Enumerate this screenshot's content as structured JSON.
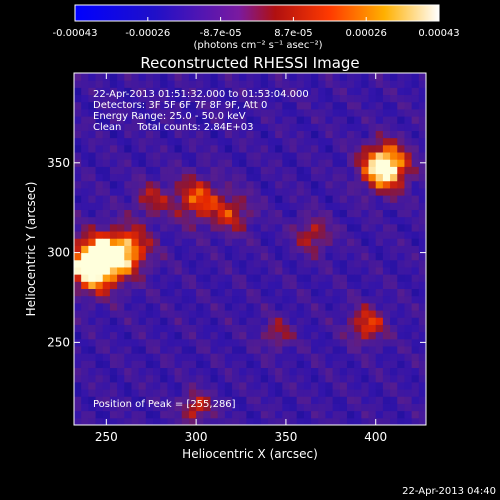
{
  "colorbar": {
    "tick_labels": [
      "-0.00043",
      "-0.00026",
      "-8.7e-05",
      "8.7e-05",
      "0.00026",
      "0.00043"
    ],
    "unit_label": "(photons cm⁻² s⁻¹ asec⁻²)",
    "range": [
      -0.00043,
      0.00043
    ]
  },
  "chart_data": {
    "type": "heatmap",
    "title": "Reconstructed RHESSI Image",
    "xlabel": "Heliocentric X (arcsec)",
    "ylabel": "Heliocentric Y (arcsec)",
    "xlim": [
      232,
      428
    ],
    "ylim": [
      204,
      400
    ],
    "x_ticks": [
      250,
      300,
      350,
      400
    ],
    "y_ticks": [
      250,
      300,
      350
    ],
    "info_lines": [
      "22-Apr-2013 01:51:32.000 to 01:53:04.000",
      "Detectors: 3F 5F 6F 7F 8F 9F, Att 0",
      "Energy Range: 25.0 - 50.0 keV",
      "Clean     Total counts: 2.84E+03"
    ],
    "peak_label": "Position of Peak = [255,286]",
    "peak_position": [
      255,
      286
    ],
    "sources": [
      {
        "x": 244,
        "y": 294,
        "amp": 1.0,
        "sigma": 10
      },
      {
        "x": 262,
        "y": 302,
        "amp": 0.55,
        "sigma": 9
      },
      {
        "x": 405,
        "y": 348,
        "amp": 0.85,
        "sigma": 9
      },
      {
        "x": 300,
        "y": 330,
        "amp": 0.45,
        "sigma": 9
      },
      {
        "x": 320,
        "y": 322,
        "amp": 0.35,
        "sigma": 8
      },
      {
        "x": 365,
        "y": 310,
        "amp": 0.35,
        "sigma": 7
      },
      {
        "x": 300,
        "y": 214,
        "amp": 0.4,
        "sigma": 6
      },
      {
        "x": 395,
        "y": 260,
        "amp": 0.45,
        "sigma": 7
      },
      {
        "x": 345,
        "y": 255,
        "amp": 0.3,
        "sigma": 6
      },
      {
        "x": 275,
        "y": 330,
        "amp": 0.3,
        "sigma": 7
      }
    ]
  },
  "footer_timestamp": "22-Apr-2013 04:40"
}
